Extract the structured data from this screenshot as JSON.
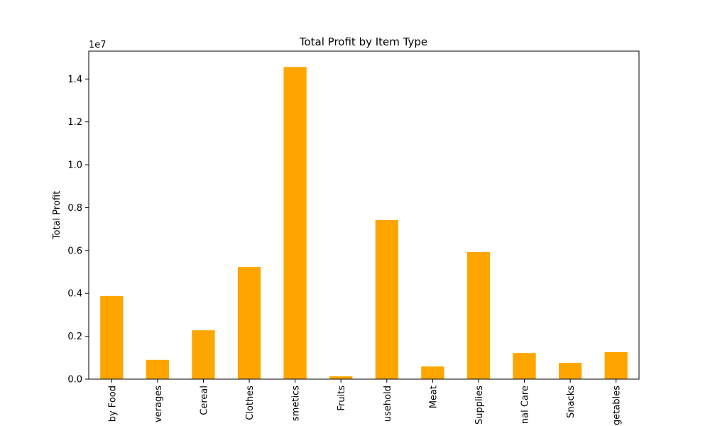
{
  "chart_data": {
    "type": "bar",
    "title": "Total Profit by Item Type",
    "xlabel": "",
    "ylabel": "Total Profit",
    "offset_label": "1e7",
    "categories": [
      "Baby Food",
      "Beverages",
      "Cereal",
      "Clothes",
      "Cosmetics",
      "Fruits",
      "Household",
      "Meat",
      "Office Supplies",
      "Personal Care",
      "Snacks",
      "Vegetables"
    ],
    "tick_labels": [
      "by Food",
      "verages",
      "Cereal",
      "Clothes",
      "smetics",
      "Fruits",
      "usehold",
      "Meat",
      "Supplies",
      "nal Care",
      "Snacks",
      "getables"
    ],
    "values": [
      3880000,
      900000,
      2280000,
      5230000,
      14560000,
      130000,
      7420000,
      590000,
      5930000,
      1220000,
      760000,
      1260000
    ],
    "ylim": [
      0,
      15300000
    ],
    "yticks": [
      0,
      2000000,
      4000000,
      6000000,
      8000000,
      10000000,
      12000000,
      14000000
    ],
    "ytick_labels": [
      "0.0",
      "0.2",
      "0.4",
      "0.6",
      "0.8",
      "1.0",
      "1.2",
      "1.4"
    ],
    "bar_color": "#FFA500",
    "grid": false,
    "legend": "none"
  }
}
